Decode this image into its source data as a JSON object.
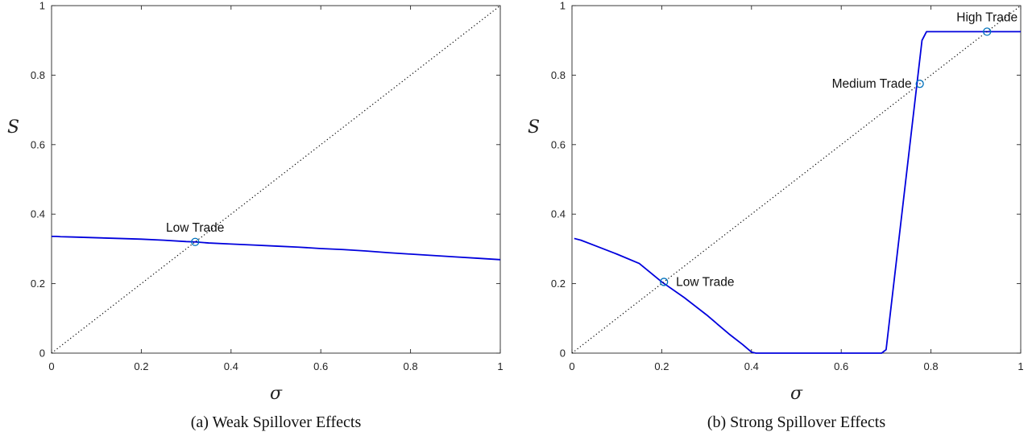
{
  "chart_data": [
    {
      "type": "line",
      "caption": "(a) Weak Spillover Effects",
      "xlabel": "σ",
      "ylabel": "S",
      "xlim": [
        0,
        1
      ],
      "ylim": [
        0,
        1
      ],
      "xticks": [
        "0",
        "0.2",
        "0.4",
        "0.6",
        "0.8",
        "1"
      ],
      "yticks": [
        "0",
        "0.2",
        "0.4",
        "0.6",
        "0.8",
        "1"
      ],
      "grid": false,
      "series": [
        {
          "style": "solid",
          "color": "#0000dd",
          "x": [
            0.0,
            0.01,
            0.02,
            0.05,
            0.1,
            0.15,
            0.2,
            0.25,
            0.3,
            0.32,
            0.35,
            0.4,
            0.45,
            0.5,
            0.55,
            0.6,
            0.65,
            0.7,
            0.75,
            0.8,
            0.85,
            0.9,
            0.95,
            1.0
          ],
          "y": [
            0.336,
            0.336,
            0.335,
            0.334,
            0.332,
            0.33,
            0.328,
            0.325,
            0.321,
            0.32,
            0.317,
            0.314,
            0.311,
            0.308,
            0.305,
            0.301,
            0.298,
            0.294,
            0.289,
            0.285,
            0.281,
            0.277,
            0.273,
            0.269
          ]
        },
        {
          "style": "dotted",
          "color": "#000000",
          "x": [
            0,
            1
          ],
          "y": [
            0,
            1
          ]
        }
      ],
      "markers": [
        {
          "x": 0.32,
          "y": 0.32,
          "label": "Low Trade",
          "label_pos": "above"
        }
      ]
    },
    {
      "type": "line",
      "caption": "(b) Strong Spillover Effects",
      "xlabel": "σ",
      "ylabel": "S",
      "xlim": [
        0,
        1
      ],
      "ylim": [
        0,
        1
      ],
      "xticks": [
        "0",
        "0.2",
        "0.4",
        "0.6",
        "0.8",
        "1"
      ],
      "yticks": [
        "0",
        "0.2",
        "0.4",
        "0.6",
        "0.8",
        "1"
      ],
      "grid": false,
      "series": [
        {
          "style": "solid",
          "color": "#0000dd",
          "x": [
            0.005,
            0.02,
            0.05,
            0.1,
            0.15,
            0.2,
            0.25,
            0.3,
            0.35,
            0.38,
            0.4,
            0.41,
            0.5,
            0.6,
            0.69,
            0.7,
            0.78,
            0.79,
            0.9,
            1.0
          ],
          "y": [
            0.33,
            0.325,
            0.31,
            0.285,
            0.258,
            0.205,
            0.16,
            0.11,
            0.055,
            0.025,
            0.003,
            0.0,
            0.0,
            0.0,
            0.0,
            0.01,
            0.9,
            0.925,
            0.925,
            0.925
          ]
        },
        {
          "style": "dotted",
          "color": "#000000",
          "x": [
            0,
            1
          ],
          "y": [
            0,
            1
          ]
        }
      ],
      "markers": [
        {
          "x": 0.205,
          "y": 0.205,
          "label": "Low Trade",
          "label_pos": "right"
        },
        {
          "x": 0.775,
          "y": 0.775,
          "label": "Medium Trade",
          "label_pos": "left"
        },
        {
          "x": 0.925,
          "y": 0.925,
          "label": "High Trade",
          "label_pos": "above"
        }
      ]
    }
  ]
}
